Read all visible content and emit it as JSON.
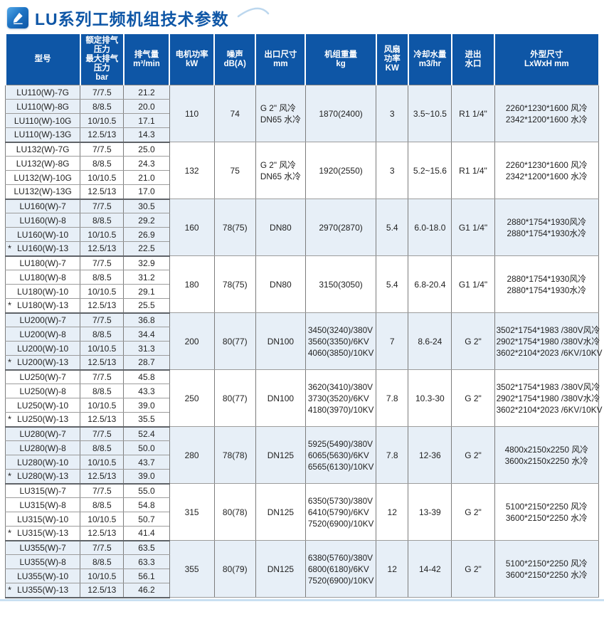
{
  "page": {
    "title": "LU系列工频机组技术参数",
    "colors": {
      "header_bg": "#0e56a6",
      "title_color": "#0e56a6",
      "group_shade_bg": "#e7eff7",
      "border": "#7d7d7d"
    },
    "icons": {
      "title_icon": "pen-writing-icon",
      "decoration": "swoosh-curve"
    }
  },
  "table": {
    "columns": [
      "型号",
      "额定排气压力\n最大排气压力\nbar",
      "排气量\nm³/min",
      "电机功率\nkW",
      "噪声\ndB(A)",
      "出口尺寸\nmm",
      "机组重量\nkg",
      "风扇\n功率\nKW",
      "冷却水量\nm3/hr",
      "进出\n水口",
      "外型尺寸\nLxWxH mm"
    ],
    "groups": [
      {
        "rows": [
          {
            "model": "LU110(W)-7G",
            "pressure": "7/7.5",
            "volume": "21.2",
            "star": false
          },
          {
            "model": "LU110(W)-8G",
            "pressure": "8/8.5",
            "volume": "20.0",
            "star": false
          },
          {
            "model": "LU110(W)-10G",
            "pressure": "10/10.5",
            "volume": "17.1",
            "star": false
          },
          {
            "model": "LU110(W)-13G",
            "pressure": "12.5/13",
            "volume": "14.3",
            "star": false
          }
        ],
        "power": "110",
        "noise": "74",
        "outlet": [
          "G 2\"  风冷",
          "DN65 水冷"
        ],
        "weight": [
          "1870(2400)"
        ],
        "fan": "3",
        "water": "3.5~10.5",
        "port": "R1 1/4\"",
        "dims": [
          "2260*1230*1600 风冷",
          "2342*1200*1600 水冷"
        ]
      },
      {
        "rows": [
          {
            "model": "LU132(W)-7G",
            "pressure": "7/7.5",
            "volume": "25.0",
            "star": false
          },
          {
            "model": "LU132(W)-8G",
            "pressure": "8/8.5",
            "volume": "24.3",
            "star": false
          },
          {
            "model": "LU132(W)-10G",
            "pressure": "10/10.5",
            "volume": "21.0",
            "star": false
          },
          {
            "model": "LU132(W)-13G",
            "pressure": "12.5/13",
            "volume": "17.0",
            "star": false
          }
        ],
        "power": "132",
        "noise": "75",
        "outlet": [
          "G 2\"  风冷",
          "DN65 水冷"
        ],
        "weight": [
          "1920(2550)"
        ],
        "fan": "3",
        "water": "5.2~15.6",
        "port": "R1 1/4\"",
        "dims": [
          "2260*1230*1600 风冷",
          "2342*1200*1600 水冷"
        ]
      },
      {
        "rows": [
          {
            "model": "LU160(W)-7",
            "pressure": "7/7.5",
            "volume": "30.5",
            "star": false
          },
          {
            "model": "LU160(W)-8",
            "pressure": "8/8.5",
            "volume": "29.2",
            "star": false
          },
          {
            "model": "LU160(W)-10",
            "pressure": "10/10.5",
            "volume": "26.9",
            "star": false
          },
          {
            "model": "LU160(W)-13",
            "pressure": "12.5/13",
            "volume": "22.5",
            "star": true
          }
        ],
        "power": "160",
        "noise": "78(75)",
        "outlet": [
          "DN80"
        ],
        "weight": [
          "2970(2870)"
        ],
        "fan": "5.4",
        "water": "6.0-18.0",
        "port": "G1 1/4\"",
        "dims": [
          "2880*1754*1930风冷",
          "2880*1754*1930水冷"
        ]
      },
      {
        "rows": [
          {
            "model": "LU180(W)-7",
            "pressure": "7/7.5",
            "volume": "32.9",
            "star": false
          },
          {
            "model": "LU180(W)-8",
            "pressure": "8/8.5",
            "volume": "31.2",
            "star": false
          },
          {
            "model": "LU180(W)-10",
            "pressure": "10/10.5",
            "volume": "29.1",
            "star": false
          },
          {
            "model": "LU180(W)-13",
            "pressure": "12.5/13",
            "volume": "25.5",
            "star": true
          }
        ],
        "power": "180",
        "noise": "78(75)",
        "outlet": [
          "DN80"
        ],
        "weight": [
          "3150(3050)"
        ],
        "fan": "5.4",
        "water": "6.8-20.4",
        "port": "G1 1/4\"",
        "dims": [
          "2880*1754*1930风冷",
          "2880*1754*1930水冷"
        ]
      },
      {
        "rows": [
          {
            "model": "LU200(W)-7",
            "pressure": "7/7.5",
            "volume": "36.8",
            "star": false
          },
          {
            "model": "LU200(W)-8",
            "pressure": "8/8.5",
            "volume": "34.4",
            "star": false
          },
          {
            "model": "LU200(W)-10",
            "pressure": "10/10.5",
            "volume": "31.3",
            "star": false
          },
          {
            "model": "LU200(W)-13",
            "pressure": "12.5/13",
            "volume": "28.7",
            "star": true
          }
        ],
        "power": "200",
        "noise": "80(77)",
        "outlet": [
          "DN100"
        ],
        "weight": [
          "3450(3240)/380V",
          "3560(3350)/6KV",
          "4060(3850)/10KV"
        ],
        "fan": "7",
        "water": "8.6-24",
        "port": "G 2\"",
        "dims": [
          "3502*1754*1983 /380V风冷",
          "2902*1754*1980 /380V水冷",
          "3602*2104*2023 /6KV/10KV"
        ]
      },
      {
        "rows": [
          {
            "model": "LU250(W)-7",
            "pressure": "7/7.5",
            "volume": "45.8",
            "star": false
          },
          {
            "model": "LU250(W)-8",
            "pressure": "8/8.5",
            "volume": "43.3",
            "star": false
          },
          {
            "model": "LU250(W)-10",
            "pressure": "10/10.5",
            "volume": "39.0",
            "star": false
          },
          {
            "model": "LU250(W)-13",
            "pressure": "12.5/13",
            "volume": "35.5",
            "star": true
          }
        ],
        "power": "250",
        "noise": "80(77)",
        "outlet": [
          "DN100"
        ],
        "weight": [
          "3620(3410)/380V",
          "3730(3520)/6KV",
          "4180(3970)/10KV"
        ],
        "fan": "7.8",
        "water": "10.3-30",
        "port": "G 2\"",
        "dims": [
          "3502*1754*1983 /380V风冷",
          "2902*1754*1980 /380V水冷",
          "3602*2104*2023 /6KV/10KV"
        ]
      },
      {
        "rows": [
          {
            "model": "LU280(W)-7",
            "pressure": "7/7.5",
            "volume": "52.4",
            "star": false
          },
          {
            "model": "LU280(W)-8",
            "pressure": "8/8.5",
            "volume": "50.0",
            "star": false
          },
          {
            "model": "LU280(W)-10",
            "pressure": "10/10.5",
            "volume": "43.7",
            "star": false
          },
          {
            "model": "LU280(W)-13",
            "pressure": "12.5/13",
            "volume": "39.0",
            "star": true
          }
        ],
        "power": "280",
        "noise": "78(78)",
        "outlet": [
          "DN125"
        ],
        "weight": [
          "5925(5490)/380V",
          "6065(5630)/6KV",
          "6565(6130)/10KV"
        ],
        "fan": "7.8",
        "water": "12-36",
        "port": "G 2\"",
        "dims": [
          "4800x2150x2250 风冷",
          "3600x2150x2250 水冷"
        ]
      },
      {
        "rows": [
          {
            "model": "LU315(W)-7",
            "pressure": "7/7.5",
            "volume": "55.0",
            "star": false
          },
          {
            "model": "LU315(W)-8",
            "pressure": "8/8.5",
            "volume": "54.8",
            "star": false
          },
          {
            "model": "LU315(W)-10",
            "pressure": "10/10.5",
            "volume": "50.7",
            "star": false
          },
          {
            "model": "LU315(W)-13",
            "pressure": "12.5/13",
            "volume": "41.4",
            "star": true
          }
        ],
        "power": "315",
        "noise": "80(78)",
        "outlet": [
          "DN125"
        ],
        "weight": [
          "6350(5730)/380V",
          "6410(5790)/6KV",
          "7520(6900)/10KV"
        ],
        "fan": "12",
        "water": "13-39",
        "port": "G 2\"",
        "dims": [
          "5100*2150*2250 风冷",
          "3600*2150*2250 水冷"
        ]
      },
      {
        "rows": [
          {
            "model": "LU355(W)-7",
            "pressure": "7/7.5",
            "volume": "63.5",
            "star": false
          },
          {
            "model": "LU355(W)-8",
            "pressure": "8/8.5",
            "volume": "63.3",
            "star": false
          },
          {
            "model": "LU355(W)-10",
            "pressure": "10/10.5",
            "volume": "56.1",
            "star": false
          },
          {
            "model": "LU355(W)-13",
            "pressure": "12.5/13",
            "volume": "46.2",
            "star": true
          }
        ],
        "power": "355",
        "noise": "80(79)",
        "outlet": [
          "DN125"
        ],
        "weight": [
          "6380(5760)/380V",
          "6800(6180)/6KV",
          "7520(6900)/10KV"
        ],
        "fan": "12",
        "water": "14-42",
        "port": "G 2\"",
        "dims": [
          "5100*2150*2250 风冷",
          "3600*2150*2250 水冷"
        ]
      }
    ]
  }
}
